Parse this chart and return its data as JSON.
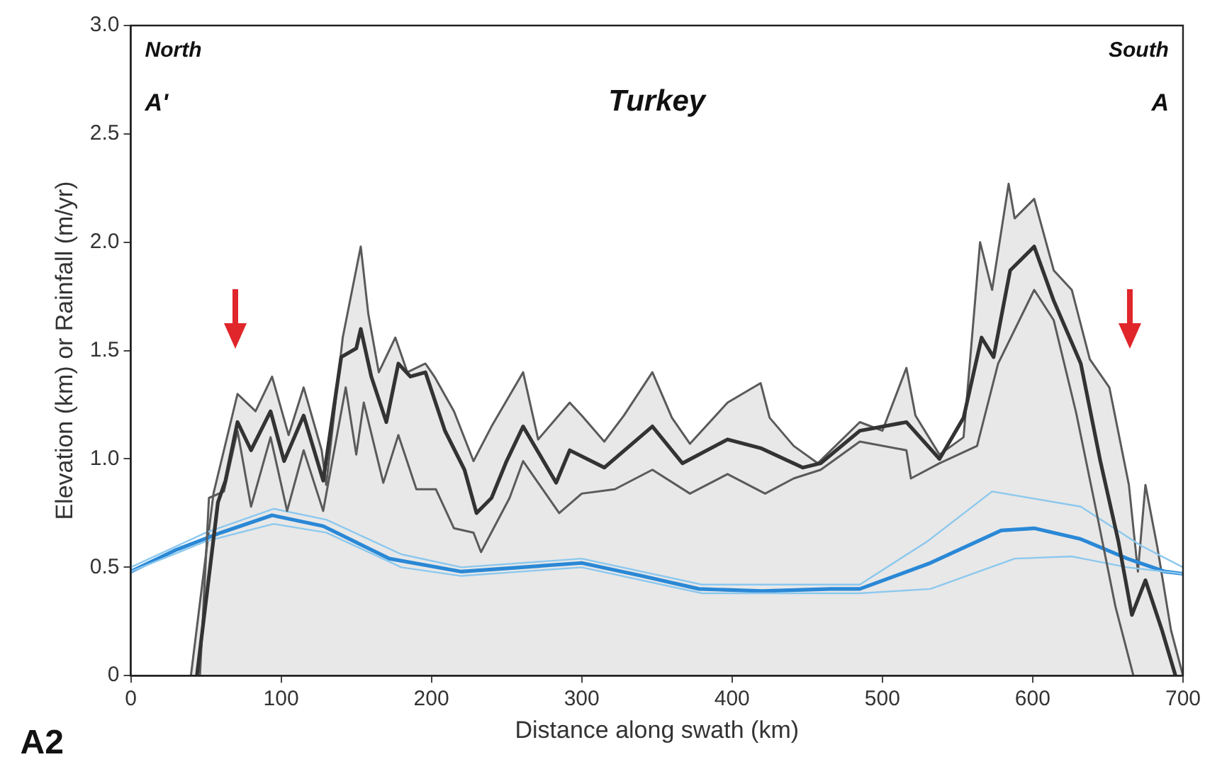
{
  "chart_data": {
    "type": "line",
    "xlabel": "Distance along swath (km)",
    "ylabel": "Elevation (km) or Rainfall (m/yr)",
    "annotations": [
      "North",
      "South",
      "A'",
      "A",
      "Turkey",
      "A2"
    ],
    "xlim": [
      0,
      700
    ],
    "xticks": [
      0,
      100,
      200,
      300,
      400,
      500,
      600,
      700
    ],
    "ylim": [
      0,
      3
    ],
    "yticks": [
      0,
      0.5,
      {
        "value": 1,
        "label": "1.0"
      },
      1.5,
      {
        "value": 2,
        "label": "2.0"
      },
      2.5,
      {
        "value": 3,
        "label": "3.0"
      }
    ],
    "grid": false,
    "legend": false,
    "marker": "none",
    "line_style": "solid",
    "series": [
      {
        "type": "area",
        "color": "#5a5a5a",
        "x": [
          40,
          55,
          71,
          83,
          94,
          105,
          115,
          127,
          130,
          141,
          153,
          158,
          165,
          176,
          184,
          196,
          202,
          215,
          228,
          240,
          261,
          271,
          292,
          300,
          315,
          328,
          347,
          360,
          372,
          397,
          419,
          425,
          441,
          457,
          485,
          500,
          516,
          522,
          538,
          554,
          565,
          573,
          584,
          588,
          601,
          614,
          626,
          638,
          651,
          664,
          670,
          675,
          683,
          692,
          700
        ],
        "values": [
          0,
          0.84,
          1.3,
          1.22,
          1.38,
          1.11,
          1.33,
          1.04,
          0.88,
          1.56,
          1.98,
          1.67,
          1.4,
          1.56,
          1.4,
          1.44,
          1.38,
          1.22,
          0.99,
          1.15,
          1.4,
          1.09,
          1.26,
          1.2,
          1.08,
          1.2,
          1.4,
          1.19,
          1.07,
          1.26,
          1.35,
          1.19,
          1.06,
          0.98,
          1.17,
          1.13,
          1.42,
          1.2,
          1.02,
          1.1,
          2.0,
          1.78,
          2.27,
          2.11,
          2.2,
          1.87,
          1.78,
          1.46,
          1.33,
          0.88,
          0.48,
          0.88,
          0.59,
          0.21,
          0
        ]
      },
      {
        "type": "line",
        "color": "#333333",
        "x": [
          44,
          58,
          63,
          71,
          80,
          93,
          102,
          115,
          128,
          140,
          150,
          153,
          160,
          170,
          178,
          186,
          196,
          209,
          222,
          230,
          240,
          250,
          261,
          283,
          292,
          315,
          347,
          367,
          397,
          419,
          447,
          459,
          485,
          516,
          538,
          554,
          566,
          574,
          585,
          601,
          614,
          632,
          645,
          657,
          666,
          675,
          686,
          695
        ],
        "values": [
          0,
          0.8,
          0.9,
          1.17,
          1.04,
          1.22,
          0.99,
          1.2,
          0.9,
          1.47,
          1.51,
          1.6,
          1.38,
          1.17,
          1.44,
          1.38,
          1.4,
          1.13,
          0.95,
          0.75,
          0.82,
          0.99,
          1.15,
          0.89,
          1.04,
          0.96,
          1.15,
          0.98,
          1.09,
          1.05,
          0.96,
          0.98,
          1.13,
          1.17,
          1.0,
          1.19,
          1.56,
          1.47,
          1.87,
          1.98,
          1.73,
          1.44,
          0.99,
          0.62,
          0.28,
          0.44,
          0.21,
          0
        ]
      },
      {
        "type": "line",
        "color": "#5a5a5a",
        "x": [
          46,
          52,
          62,
          71,
          80,
          93,
          104,
          115,
          128,
          143,
          150,
          155,
          168,
          178,
          190,
          203,
          215,
          228,
          233,
          252,
          261,
          285,
          300,
          322,
          347,
          372,
          397,
          422,
          441,
          459,
          485,
          516,
          519,
          538,
          563,
          577,
          601,
          614,
          629,
          642,
          655,
          667
        ],
        "values": [
          0,
          0.82,
          0.85,
          1.13,
          0.78,
          1.1,
          0.76,
          1.04,
          0.76,
          1.33,
          1.02,
          1.26,
          0.89,
          1.11,
          0.86,
          0.86,
          0.68,
          0.66,
          0.57,
          0.82,
          0.99,
          0.75,
          0.84,
          0.86,
          0.95,
          0.84,
          0.93,
          0.84,
          0.91,
          0.95,
          1.08,
          1.04,
          0.91,
          0.98,
          1.06,
          1.44,
          1.78,
          1.64,
          1.21,
          0.77,
          0.32,
          0
        ]
      },
      {
        "type": "line",
        "color": "#8cc8ee",
        "x": [
          0,
          50,
          95,
          130,
          180,
          220,
          300,
          380,
          470,
          485,
          530,
          573,
          632,
          672,
          700
        ],
        "values": [
          0.5,
          0.66,
          0.77,
          0.72,
          0.56,
          0.5,
          0.54,
          0.42,
          0.42,
          0.42,
          0.62,
          0.85,
          0.78,
          0.6,
          0.5
        ]
      },
      {
        "type": "line",
        "color": "#8cc8ee",
        "x": [
          0,
          50,
          95,
          130,
          180,
          220,
          300,
          380,
          470,
          485,
          532,
          588,
          626,
          663,
          700
        ],
        "values": [
          0.48,
          0.62,
          0.7,
          0.66,
          0.5,
          0.46,
          0.5,
          0.38,
          0.38,
          0.38,
          0.4,
          0.54,
          0.55,
          0.5,
          0.47
        ]
      },
      {
        "type": "line",
        "color": "#2a88d6",
        "x": [
          0,
          30,
          60,
          94,
          128,
          172,
          220,
          240,
          300,
          340,
          378,
          420,
          466,
          485,
          532,
          579,
          601,
          632,
          663,
          688,
          700
        ],
        "values": [
          0.48,
          0.58,
          0.66,
          0.74,
          0.69,
          0.54,
          0.48,
          0.49,
          0.52,
          0.46,
          0.4,
          0.39,
          0.4,
          0.4,
          0.52,
          0.67,
          0.68,
          0.63,
          0.54,
          0.48,
          0.47
        ]
      }
    ]
  }
}
